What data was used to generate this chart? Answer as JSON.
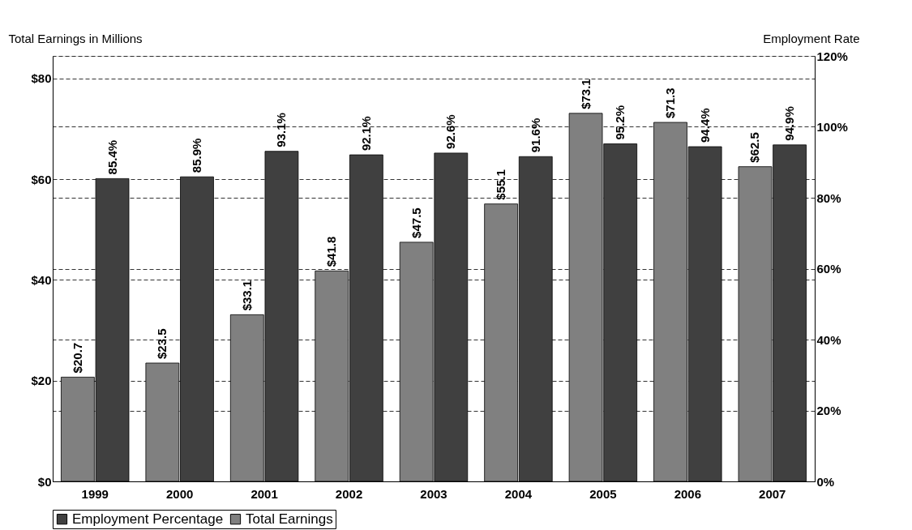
{
  "chart_data": {
    "type": "bar",
    "ylabel": "Total Earnings in Millions",
    "y2label": "Employment Rate",
    "categories": [
      "1999",
      "2000",
      "2001",
      "2002",
      "2003",
      "2004",
      "2005",
      "2006",
      "2007"
    ],
    "series": [
      {
        "name": "Employment Percentage",
        "color": "#404040",
        "axis": "y2",
        "values": [
          85.4,
          85.9,
          93.1,
          92.1,
          92.6,
          91.6,
          95.2,
          94.4,
          94.9
        ],
        "value_labels": [
          "85.4%",
          "85.9%",
          "93.1%",
          "92.1%",
          "92.6%",
          "91.6%",
          "95.2%",
          "94.4%",
          "94.9%"
        ]
      },
      {
        "name": "Total Earnings",
        "color": "#808080",
        "values": [
          20.7,
          23.5,
          33.1,
          41.8,
          47.5,
          55.1,
          73.1,
          71.3,
          62.5
        ],
        "value_labels": [
          "$20.7",
          "$23.5",
          "$33.1",
          "$41.8",
          "$47.5",
          "$55.1",
          "$73.1",
          "$71.3",
          "$62.5"
        ]
      }
    ],
    "ylim": [
      0,
      84.5
    ],
    "yticks": [
      {
        "value": 0,
        "label": "$0"
      },
      {
        "value": 20,
        "label": "$20"
      },
      {
        "value": 40,
        "label": "$40"
      },
      {
        "value": 60,
        "label": "$60"
      },
      {
        "value": 80,
        "label": "$80"
      }
    ],
    "y2lim": [
      0,
      120
    ],
    "y2ticks": [
      {
        "value": 0,
        "label": "0%"
      },
      {
        "value": 20,
        "label": "20%"
      },
      {
        "value": 40,
        "label": "40%"
      },
      {
        "value": 60,
        "label": "60%"
      },
      {
        "value": 80,
        "label": "80%"
      },
      {
        "value": 100,
        "label": "100%"
      },
      {
        "value": 120,
        "label": "120%"
      }
    ],
    "grid": true,
    "legend": "bottom"
  }
}
